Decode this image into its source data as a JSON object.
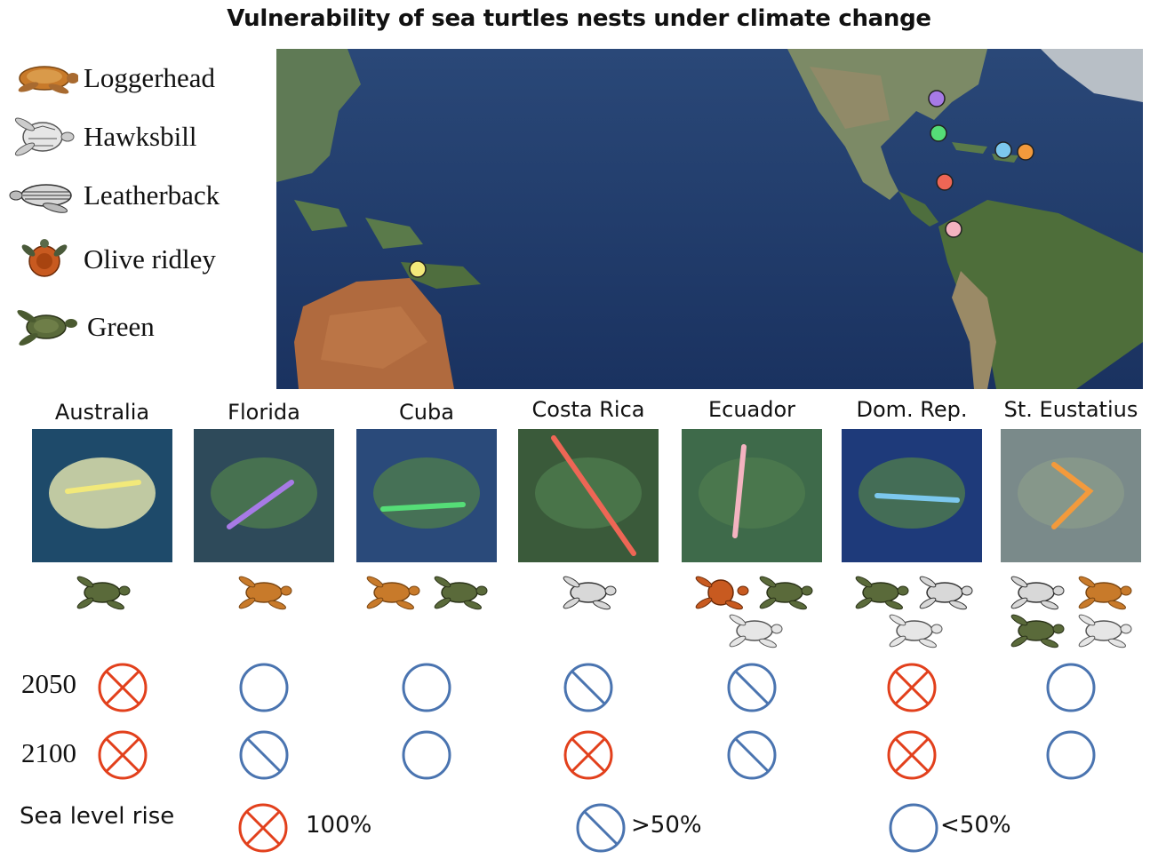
{
  "title": "Vulnerability of sea turtles nests under climate change",
  "legend": [
    {
      "label": "Loggerhead",
      "icon": "loggerhead-turtle-icon"
    },
    {
      "label": "Hawksbill",
      "icon": "hawksbill-turtle-icon"
    },
    {
      "label": "Leatherback",
      "icon": "leatherback-turtle-icon"
    },
    {
      "label": "Olive ridley",
      "icon": "olive-ridley-turtle-icon"
    },
    {
      "label": "Green",
      "icon": "green-turtle-icon"
    }
  ],
  "sites": [
    {
      "name": "Australia",
      "color": "#f2e97a",
      "species": [
        "Green"
      ],
      "status_2050": "100%",
      "status_2100": "100%"
    },
    {
      "name": "Florida",
      "color": "#a77ae6",
      "species": [
        "Loggerhead"
      ],
      "status_2050": "<50%",
      "status_2100": ">50%"
    },
    {
      "name": "Cuba",
      "color": "#55dd77",
      "species": [
        "Loggerhead",
        "Green"
      ],
      "status_2050": "<50%",
      "status_2100": "<50%"
    },
    {
      "name": "Costa Rica",
      "color": "#ee6655",
      "species": [
        "Leatherback"
      ],
      "status_2050": ">50%",
      "status_2100": "100%"
    },
    {
      "name": "Ecuador",
      "color": "#f4b3c0",
      "species": [
        "Olive ridley",
        "Green",
        "Hawksbill"
      ],
      "status_2050": ">50%",
      "status_2100": ">50%"
    },
    {
      "name": "Dom. Rep.",
      "color": "#7cc8ee",
      "species": [
        "Green",
        "Leatherback",
        "Hawksbill"
      ],
      "status_2050": "100%",
      "status_2100": "100%"
    },
    {
      "name": "St. Eustatius",
      "color": "#f39a3c",
      "species": [
        "Leatherback",
        "Loggerhead",
        "Green",
        "Hawksbill"
      ],
      "status_2050": "<50%",
      "status_2100": "<50%"
    }
  ],
  "years": [
    "2050",
    "2100"
  ],
  "key": {
    "title": "Sea level rise",
    "items": [
      {
        "label": "100%",
        "symbol": "cross-circle-icon"
      },
      {
        "label": ">50%",
        "symbol": "slash-circle-icon"
      },
      {
        "label": "<50%",
        "symbol": "empty-circle-icon"
      }
    ]
  },
  "colors": {
    "high": "#e2401c",
    "mid": "#4a74b0",
    "ocean": "#1e3a68",
    "land": "#b06a3e"
  }
}
